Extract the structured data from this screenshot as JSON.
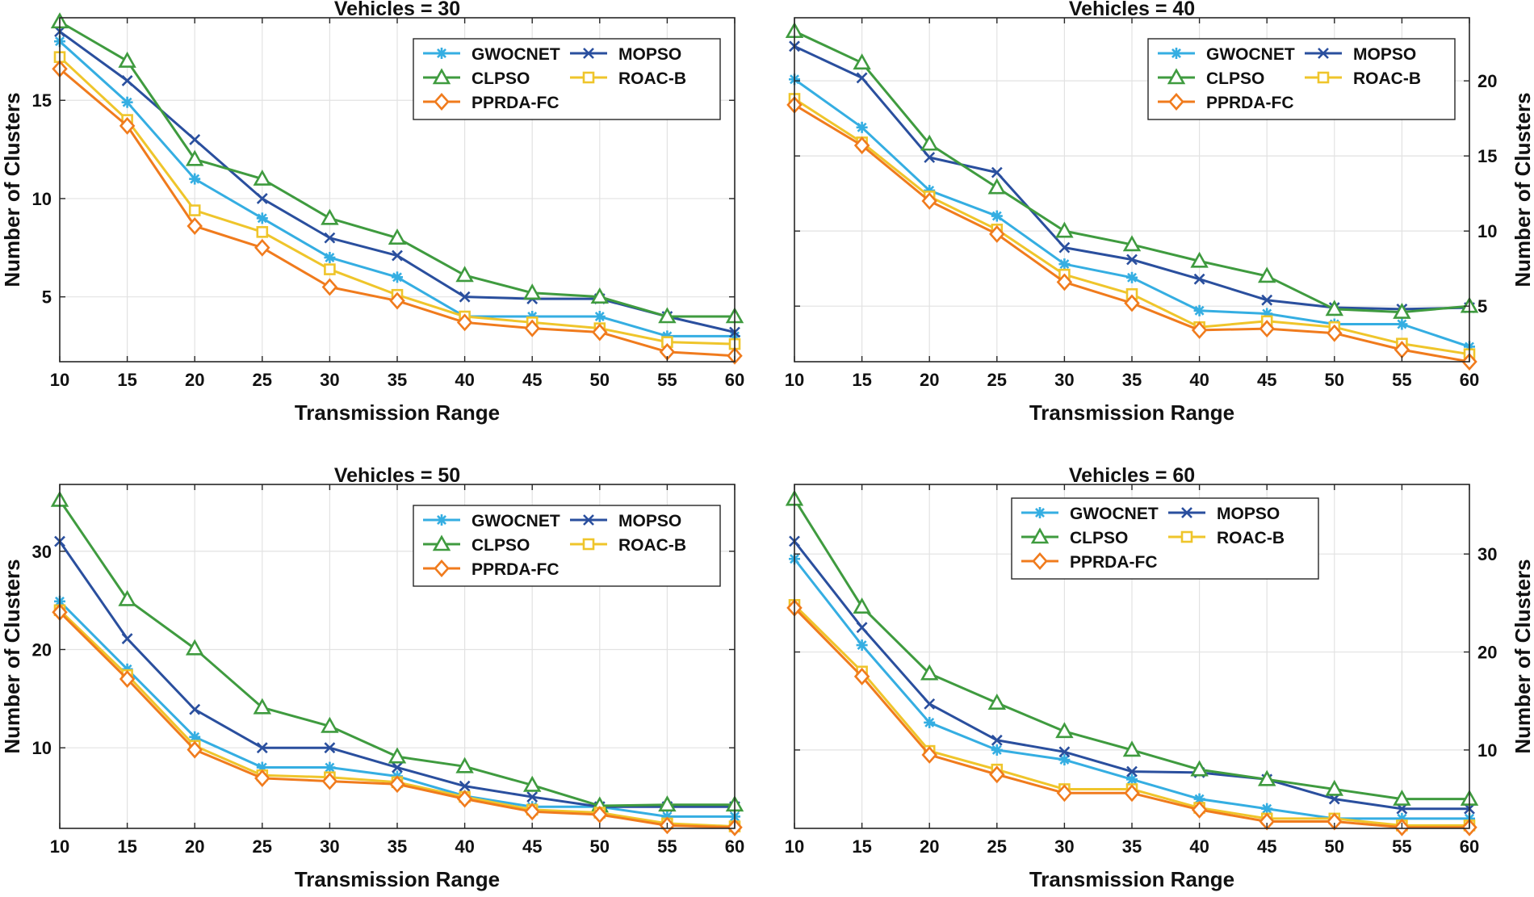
{
  "figure": {
    "series_styles": [
      {
        "name": "GWOCNET",
        "color": "#35aee2",
        "marker": "asterisk"
      },
      {
        "name": "MOPSO",
        "color": "#2a4f9e",
        "marker": "x"
      },
      {
        "name": "CLPSO",
        "color": "#3f9b3f",
        "marker": "triangle"
      },
      {
        "name": "ROAC-B",
        "color": "#efc52b",
        "marker": "square"
      },
      {
        "name": "PPRDA-FC",
        "color": "#f07b1d",
        "marker": "diamond"
      }
    ]
  },
  "chart_data": [
    {
      "type": "line",
      "title": "Vehicles = 30",
      "xlabel": "Transmission Range",
      "ylabel": "Number of Clusters",
      "y_axis_side": "left",
      "legend_position": "top-right",
      "grid": true,
      "x": [
        10,
        15,
        20,
        25,
        30,
        35,
        40,
        45,
        50,
        55,
        60
      ],
      "xlim": [
        10,
        60
      ],
      "ylim": [
        1.7,
        19.2
      ],
      "yticks": [
        5,
        10,
        15
      ],
      "series": [
        {
          "name": "GWOCNET",
          "values": [
            18,
            14.9,
            11,
            9,
            7,
            6,
            4,
            4,
            4,
            3,
            3
          ]
        },
        {
          "name": "MOPSO",
          "values": [
            18.5,
            16,
            13,
            10,
            8,
            7.1,
            5,
            4.9,
            4.9,
            4,
            3.2
          ]
        },
        {
          "name": "CLPSO",
          "values": [
            19,
            17,
            12,
            11,
            9,
            8,
            6.1,
            5.2,
            5,
            4,
            4
          ]
        },
        {
          "name": "ROAC-B",
          "values": [
            17.2,
            14,
            9.4,
            8.3,
            6.4,
            5.1,
            4,
            3.7,
            3.4,
            2.7,
            2.6
          ]
        },
        {
          "name": "PPRDA-FC",
          "values": [
            16.6,
            13.7,
            8.6,
            7.5,
            5.5,
            4.8,
            3.7,
            3.4,
            3.2,
            2.2,
            2
          ]
        }
      ]
    },
    {
      "type": "line",
      "title": "Vehicles = 40",
      "xlabel": "Transmission Range",
      "ylabel": "Number of Clusters",
      "y_axis_side": "right",
      "legend_position": "top-right",
      "grid": true,
      "x": [
        10,
        15,
        20,
        25,
        30,
        35,
        40,
        45,
        50,
        55,
        60
      ],
      "xlim": [
        10,
        60
      ],
      "ylim": [
        1.3,
        24.2
      ],
      "yticks": [
        5,
        10,
        15,
        20
      ],
      "series": [
        {
          "name": "GWOCNET",
          "values": [
            20.1,
            16.9,
            12.7,
            11,
            7.8,
            6.9,
            4.7,
            4.5,
            3.8,
            3.8,
            2.3
          ]
        },
        {
          "name": "MOPSO",
          "values": [
            22.3,
            20.2,
            14.9,
            13.9,
            8.9,
            8.1,
            6.8,
            5.4,
            4.9,
            4.8,
            4.9
          ]
        },
        {
          "name": "CLPSO",
          "values": [
            23.3,
            21.2,
            15.8,
            12.9,
            10,
            9.1,
            8,
            7,
            4.8,
            4.6,
            5
          ]
        },
        {
          "name": "ROAC-B",
          "values": [
            18.8,
            15.9,
            12.3,
            10.1,
            7.1,
            5.8,
            3.6,
            4,
            3.6,
            2.5,
            1.8
          ]
        },
        {
          "name": "PPRDA-FC",
          "values": [
            18.4,
            15.7,
            12,
            9.8,
            6.6,
            5.2,
            3.4,
            3.5,
            3.2,
            2.1,
            1.3
          ]
        }
      ]
    },
    {
      "type": "line",
      "title": "Vehicles = 50",
      "xlabel": "Transmission Range",
      "ylabel": "Number of Clusters",
      "y_axis_side": "left",
      "legend_position": "top-right",
      "grid": true,
      "x": [
        10,
        15,
        20,
        25,
        30,
        35,
        40,
        45,
        50,
        55,
        60
      ],
      "xlim": [
        10,
        60
      ],
      "ylim": [
        1.8,
        36.8
      ],
      "yticks": [
        10,
        20,
        30
      ],
      "series": [
        {
          "name": "GWOCNET",
          "values": [
            24.9,
            18,
            11.1,
            8,
            8,
            7.1,
            5.1,
            4,
            4,
            3,
            3
          ]
        },
        {
          "name": "MOPSO",
          "values": [
            31,
            21.1,
            13.9,
            10,
            10,
            8,
            6.1,
            5,
            4,
            4,
            4
          ]
        },
        {
          "name": "CLPSO",
          "values": [
            35.2,
            25.1,
            20.1,
            14.1,
            12.2,
            9.1,
            8.1,
            6.2,
            4.1,
            4.2,
            4.2
          ]
        },
        {
          "name": "ROAC-B",
          "values": [
            24,
            17.4,
            10.2,
            7.2,
            7,
            6.5,
            5,
            3.7,
            3.4,
            2.3,
            2
          ]
        },
        {
          "name": "PPRDA-FC",
          "values": [
            23.8,
            17,
            9.8,
            6.9,
            6.6,
            6.3,
            4.8,
            3.5,
            3.2,
            2.1,
            1.9
          ]
        }
      ]
    },
    {
      "type": "line",
      "title": "Vehicles = 60",
      "xlabel": "Transmission Range",
      "ylabel": "Number of Clusters",
      "y_axis_side": "right",
      "legend_position": "top-left",
      "grid": true,
      "x": [
        10,
        15,
        20,
        25,
        30,
        35,
        40,
        45,
        50,
        55,
        60
      ],
      "xlim": [
        10,
        60
      ],
      "ylim": [
        2,
        37.1
      ],
      "yticks": [
        10,
        20,
        30
      ],
      "series": [
        {
          "name": "GWOCNET",
          "values": [
            29.5,
            20.7,
            12.8,
            10,
            9,
            7,
            5,
            4,
            3,
            3,
            3
          ]
        },
        {
          "name": "MOPSO",
          "values": [
            31.3,
            22.5,
            14.7,
            11,
            9.8,
            7.8,
            7.7,
            7,
            5,
            4,
            4
          ]
        },
        {
          "name": "CLPSO",
          "values": [
            35.6,
            24.6,
            17.8,
            14.8,
            11.9,
            10,
            8,
            7,
            6,
            5,
            5
          ]
        },
        {
          "name": "ROAC-B",
          "values": [
            24.8,
            18,
            9.9,
            8,
            6,
            6,
            4.1,
            3,
            3,
            2.3,
            2.3
          ]
        },
        {
          "name": "PPRDA-FC",
          "values": [
            24.5,
            17.5,
            9.5,
            7.5,
            5.6,
            5.6,
            3.9,
            2.7,
            2.7,
            2.1,
            2.1
          ]
        }
      ]
    }
  ]
}
